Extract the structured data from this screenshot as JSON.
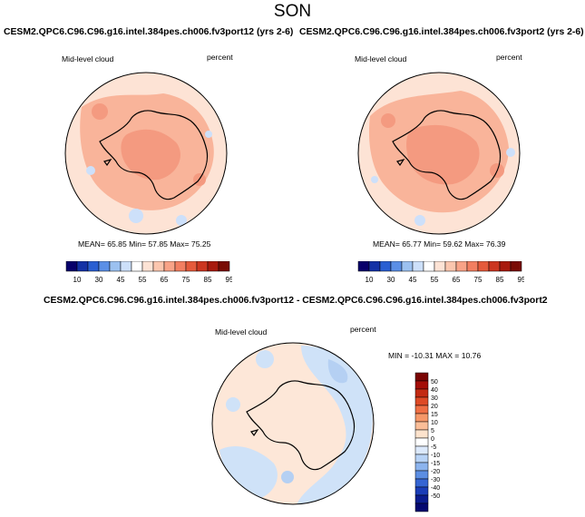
{
  "page_title": "SON",
  "panels": [
    {
      "title": "CESM2.QPC6.C96.C96.g16.intel.384pes.ch006.fv3port12 (yrs 2-6)",
      "left_label": "Mid-level cloud",
      "right_label": "percent",
      "stats": "MEAN= 65.85  Min= 57.85  Max= 75.25"
    },
    {
      "title": "CESM2.QPC6.C96.C96.g16.intel.384pes.ch006.fv3port2 (yrs 2-6)",
      "left_label": "Mid-level cloud",
      "right_label": "percent",
      "stats": "MEAN= 65.77  Min= 59.62  Max= 76.39"
    }
  ],
  "diff_panel": {
    "title": "CESM2.QPC6.C96.C96.g16.intel.384pes.ch006.fv3port12 - CESM2.QPC6.C96.C96.g16.intel.384pes.ch006.fv3port2",
    "left_label": "Mid-level cloud",
    "right_label": "percent",
    "stats": "MIN = -10.31 MAX =  10.76"
  },
  "colorbar_horizontal": {
    "labels": [
      "10",
      "30",
      "45",
      "55",
      "65",
      "75",
      "85",
      "95"
    ],
    "colors": [
      "#08006b",
      "#1431a6",
      "#2a5fd2",
      "#5b8fe6",
      "#9cc1f0",
      "#cde0fa",
      "#ffffff",
      "#fde3d5",
      "#fbc6ae",
      "#f8a387",
      "#f27f61",
      "#e55a3b",
      "#cc3620",
      "#a81a0e",
      "#7a0c05"
    ]
  },
  "colorbar_vertical": {
    "labels": [
      "50",
      "40",
      "30",
      "20",
      "15",
      "10",
      "5",
      "0",
      "-5",
      "-10",
      "-15",
      "-20",
      "-30",
      "-40",
      "-50"
    ],
    "colors": [
      "#7a0403",
      "#a40e08",
      "#c32a12",
      "#de4a25",
      "#ef6f44",
      "#f69869",
      "#fbbe98",
      "#fde3cd",
      "#ffffff",
      "#dce9fb",
      "#b8d3f6",
      "#8cb4ee",
      "#5c8ee3",
      "#3565d3",
      "#1a3db8",
      "#0b1c8f",
      "#040870"
    ]
  },
  "map_colors": {
    "low_field": "#fde3d5",
    "high_field": "#f9b49a",
    "peak_field": "#f49a80",
    "below_field": "#cde0fa",
    "diff_base": "#fde7d8",
    "diff_neg": "#cfe2f8",
    "diff_neg_strong": "#b5d0f3",
    "coast": "#000000"
  }
}
